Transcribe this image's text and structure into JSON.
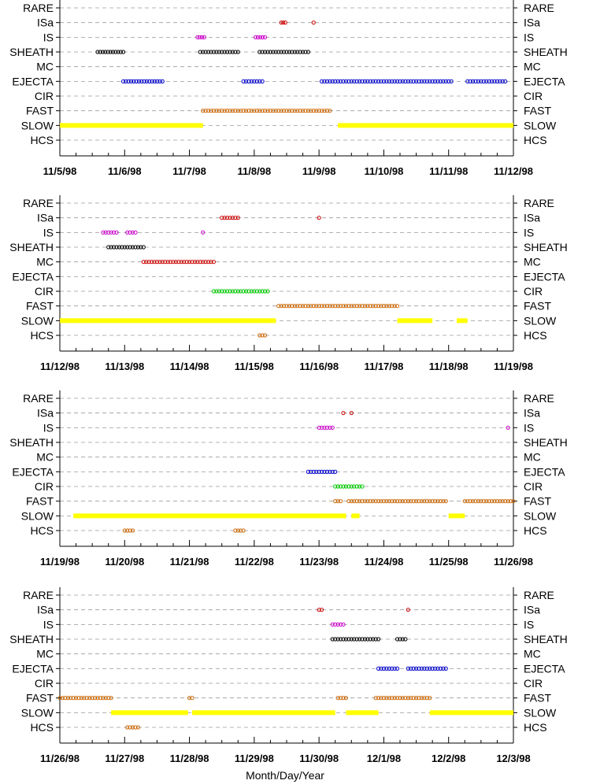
{
  "chart_data": {
    "type": "scatter",
    "categories": [
      "RARE",
      "ISa",
      "IS",
      "SHEATH",
      "MC",
      "EJECTA",
      "CIR",
      "FAST",
      "SLOW",
      "HCS"
    ],
    "xlabel": "Month/Day/Year",
    "grid": "dashed horizontal lines at each category",
    "colors": {
      "ISa": "#cc0000",
      "IS": "#cc00cc",
      "SHEATH": "#000000",
      "MC": "#cc0000",
      "EJECTA": "#0000cc",
      "CIR": "#00cc00",
      "FAST": "#cc6600",
      "SLOW": "#ffff00",
      "HCS": "#cc6600"
    },
    "panels": [
      {
        "xlim": [
          "11/5/98",
          "11/12/98"
        ],
        "x_tick_labels": [
          "11/5/98",
          "11/6/98",
          "11/7/98",
          "11/8/98",
          "11/9/98",
          "11/10/98",
          "11/11/98",
          "11/12/98"
        ],
        "intervals": [
          {
            "category": "ISa",
            "start": "11/8/98 10:00",
            "end": "11/8/98 11:30"
          },
          {
            "category": "ISa",
            "start": "11/8/98 22:00",
            "end": "11/8/98 22:00"
          },
          {
            "category": "IS",
            "start": "11/7/98 03:00",
            "end": "11/7/98 05:30"
          },
          {
            "category": "IS",
            "start": "11/8/98 00:30",
            "end": "11/8/98 04:00"
          },
          {
            "category": "SHEATH",
            "start": "11/5/98 14:00",
            "end": "11/5/98 23:30"
          },
          {
            "category": "SHEATH",
            "start": "11/7/98 04:00",
            "end": "11/7/98 18:00"
          },
          {
            "category": "SHEATH",
            "start": "11/8/98 02:00",
            "end": "11/8/98 20:00"
          },
          {
            "category": "EJECTA",
            "start": "11/5/98 23:30",
            "end": "11/6/98 14:00"
          },
          {
            "category": "EJECTA",
            "start": "11/7/98 20:00",
            "end": "11/8/98 03:00"
          },
          {
            "category": "EJECTA",
            "start": "11/9/98 01:00",
            "end": "11/11/98 01:00"
          },
          {
            "category": "EJECTA",
            "start": "11/11/98 07:00",
            "end": "11/11/98 21:00"
          },
          {
            "category": "FAST",
            "start": "11/7/98 05:00",
            "end": "11/9/98 04:00"
          },
          {
            "category": "SLOW",
            "start": "11/5/98 00:00",
            "end": "11/7/98 05:00"
          },
          {
            "category": "SLOW",
            "start": "11/9/98 07:00",
            "end": "11/12/98 00:00"
          }
        ]
      },
      {
        "xlim": [
          "11/12/98",
          "11/19/98"
        ],
        "x_tick_labels": [
          "11/12/98",
          "11/13/98",
          "11/14/98",
          "11/15/98",
          "11/16/98",
          "11/17/98",
          "11/18/98",
          "11/19/98"
        ],
        "intervals": [
          {
            "category": "ISa",
            "start": "11/14/98 12:00",
            "end": "11/14/98 18:00"
          },
          {
            "category": "ISa",
            "start": "11/16/98 00:00",
            "end": "11/16/98 00:00"
          },
          {
            "category": "IS",
            "start": "11/12/98 16:00",
            "end": "11/12/98 21:00"
          },
          {
            "category": "IS",
            "start": "11/13/98 01:00",
            "end": "11/13/98 04:00"
          },
          {
            "category": "IS",
            "start": "11/14/98 05:00",
            "end": "11/14/98 05:00"
          },
          {
            "category": "SHEATH",
            "start": "11/12/98 18:00",
            "end": "11/13/98 07:00"
          },
          {
            "category": "MC",
            "start": "11/13/98 07:00",
            "end": "11/14/98 09:00"
          },
          {
            "category": "CIR",
            "start": "11/14/98 09:00",
            "end": "11/15/98 05:00"
          },
          {
            "category": "FAST",
            "start": "11/15/98 09:00",
            "end": "11/17/98 05:00"
          },
          {
            "category": "SLOW",
            "start": "11/12/98 00:00",
            "end": "11/15/98 08:00"
          },
          {
            "category": "SLOW",
            "start": "11/17/98 05:00",
            "end": "11/17/98 18:00"
          },
          {
            "category": "SLOW",
            "start": "11/18/98 03:00",
            "end": "11/18/98 07:00"
          },
          {
            "category": "HCS",
            "start": "11/15/98 02:00",
            "end": "11/15/98 04:00"
          }
        ]
      },
      {
        "xlim": [
          "11/19/98",
          "11/26/98"
        ],
        "x_tick_labels": [
          "11/19/98",
          "11/20/98",
          "11/21/98",
          "11/22/98",
          "11/23/98",
          "11/24/98",
          "11/25/98",
          "11/26/98"
        ],
        "intervals": [
          {
            "category": "ISa",
            "start": "11/23/98 09:00",
            "end": "11/23/98 09:00"
          },
          {
            "category": "ISa",
            "start": "11/23/98 12:00",
            "end": "11/23/98 12:00"
          },
          {
            "category": "IS",
            "start": "11/23/98 00:00",
            "end": "11/23/98 05:00"
          },
          {
            "category": "IS",
            "start": "11/25/98 22:00",
            "end": "11/25/98 22:00"
          },
          {
            "category": "EJECTA",
            "start": "11/22/98 20:00",
            "end": "11/23/98 06:00"
          },
          {
            "category": "CIR",
            "start": "11/23/98 06:00",
            "end": "11/23/98 16:00"
          },
          {
            "category": "FAST",
            "start": "11/23/98 06:00",
            "end": "11/23/98 08:00"
          },
          {
            "category": "FAST",
            "start": "11/23/98 11:00",
            "end": "11/24/98 23:00"
          },
          {
            "category": "FAST",
            "start": "11/25/98 06:00",
            "end": "11/26/98 00:00"
          },
          {
            "category": "SLOW",
            "start": "11/19/98 05:00",
            "end": "11/23/98 10:00"
          },
          {
            "category": "SLOW",
            "start": "11/23/98 12:00",
            "end": "11/23/98 15:00"
          },
          {
            "category": "SLOW",
            "start": "11/25/98 00:00",
            "end": "11/25/98 06:00"
          },
          {
            "category": "HCS",
            "start": "11/20/98 00:00",
            "end": "11/20/98 03:00"
          },
          {
            "category": "HCS",
            "start": "11/21/98 17:00",
            "end": "11/21/98 20:00"
          }
        ]
      },
      {
        "xlim": [
          "11/26/98",
          "12/3/98"
        ],
        "x_tick_labels": [
          "11/26/98",
          "11/27/98",
          "11/28/98",
          "11/29/98",
          "11/30/98",
          "12/1/98",
          "12/2/98",
          "12/3/98"
        ],
        "intervals": [
          {
            "category": "ISa",
            "start": "11/30/98 00:00",
            "end": "11/30/98 01:00"
          },
          {
            "category": "ISa",
            "start": "12/1/98 09:00",
            "end": "12/1/98 09:00"
          },
          {
            "category": "IS",
            "start": "11/30/98 05:00",
            "end": "11/30/98 09:00"
          },
          {
            "category": "SHEATH",
            "start": "11/30/98 05:00",
            "end": "11/30/98 22:00"
          },
          {
            "category": "SHEATH",
            "start": "12/1/98 05:00",
            "end": "12/1/98 08:00"
          },
          {
            "category": "EJECTA",
            "start": "11/30/98 22:00",
            "end": "12/1/98 05:00"
          },
          {
            "category": "EJECTA",
            "start": "12/1/98 09:00",
            "end": "12/1/98 23:00"
          },
          {
            "category": "FAST",
            "start": "11/26/98 00:00",
            "end": "11/26/98 19:00"
          },
          {
            "category": "FAST",
            "start": "11/28/98 00:00",
            "end": "11/28/98 01:00"
          },
          {
            "category": "FAST",
            "start": "11/30/98 07:00",
            "end": "11/30/98 10:00"
          },
          {
            "category": "FAST",
            "start": "11/30/98 21:00",
            "end": "12/1/98 17:00"
          },
          {
            "category": "SLOW",
            "start": "11/26/98 19:00",
            "end": "11/27/98 23:30"
          },
          {
            "category": "SLOW",
            "start": "11/28/98 01:00",
            "end": "11/30/98 06:00"
          },
          {
            "category": "SLOW",
            "start": "11/30/98 10:00",
            "end": "11/30/98 22:00"
          },
          {
            "category": "SLOW",
            "start": "12/1/98 17:00",
            "end": "12/3/98 00:00"
          },
          {
            "category": "HCS",
            "start": "11/27/98 01:00",
            "end": "11/27/98 05:00"
          }
        ]
      }
    ]
  }
}
